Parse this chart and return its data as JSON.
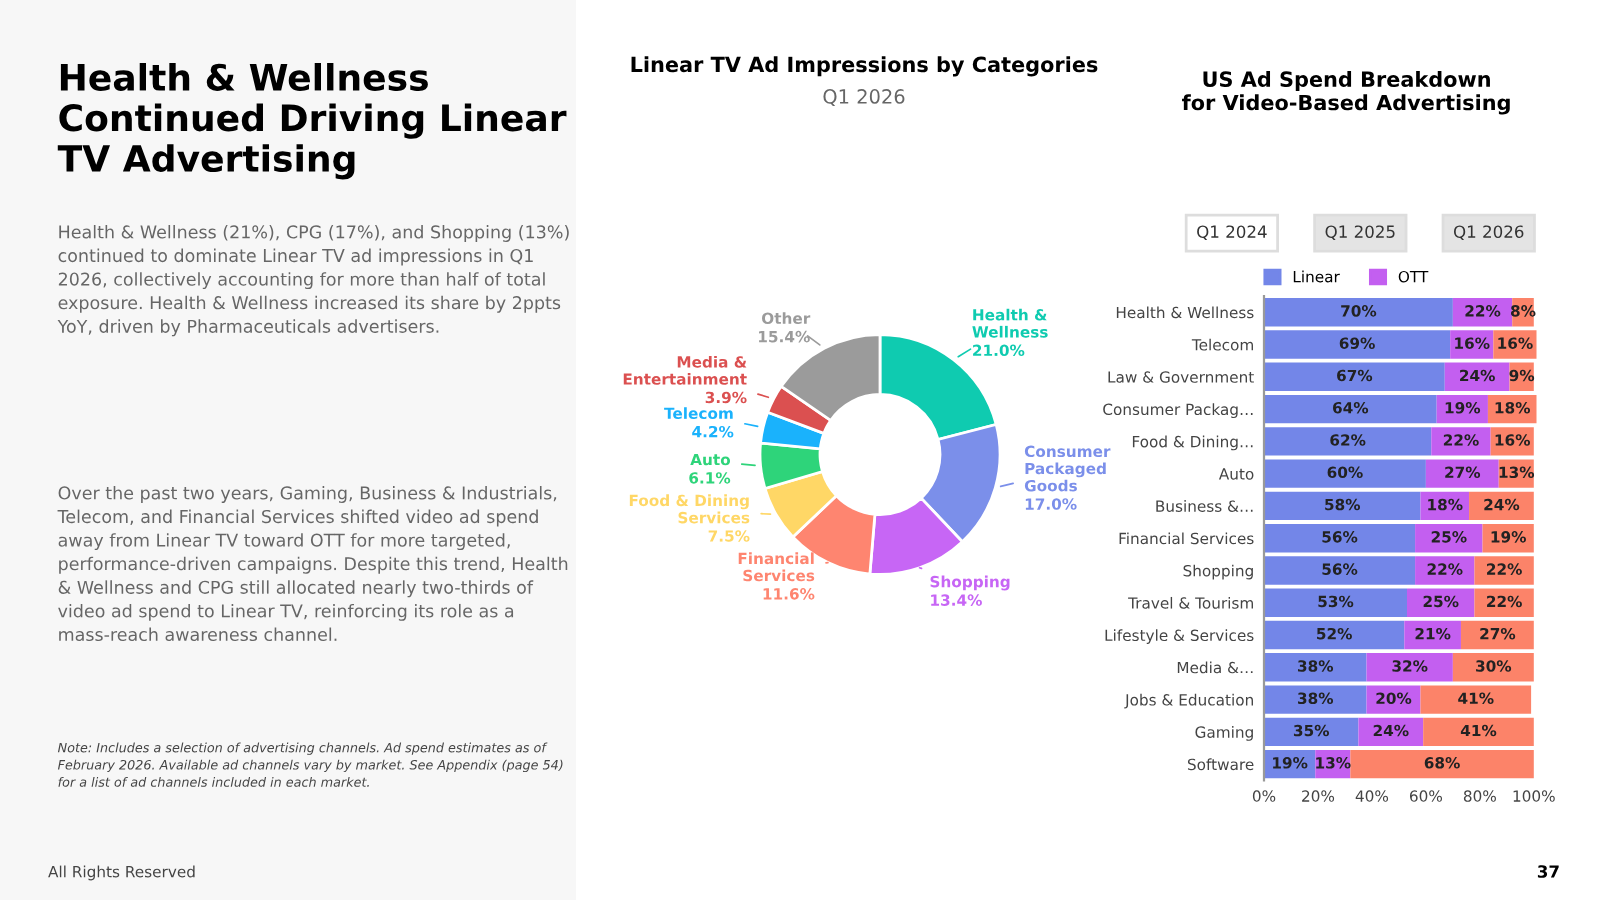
{
  "chart_data": [
    {
      "type": "other",
      "title": "Health & Wellness Continued Driving Linear TV Advertising",
      "annotations": [
        "Health & Wellness (21%), CPG (17%), and Shopping (13%) continued to dominate Linear TV ad impressions in Q1 2026, collectively accounting for more than half of total exposure. Health & Wellness increased its share by 2ppts YoY, driven by Pharmaceuticals advertisers.",
        "Over the past two years, Gaming, Business & Industrials, Telecom, and Financial Services shifted video ad spend away from Linear TV toward OTT for more targeted, performance-driven campaigns. Despite this trend, Health & Wellness and CPG still allocated nearly two-thirds of video ad spend to Linear TV, reinforcing its role as a mass-reach awareness channel.",
        "Note: Includes a selection of advertising channels. Ad spend estimates as of February 2026. Available ad channels vary by market. See Appendix (page 54) for a list of ad channels included in each market.",
        "All Rights Reserved",
        "37"
      ]
    },
    {
      "type": "donut",
      "title": "Linear TV Ad Impressions by Categories",
      "subtitle": "Q1 2026",
      "categories": [
        "Health & Wellness",
        "Consumer Packaged Goods",
        "Shopping",
        "Financial Services",
        "Food & Dining Services",
        "Auto",
        "Telecom",
        "Media & Entertainment",
        "Other"
      ],
      "values": [
        21.0,
        17.0,
        13.4,
        11.6,
        7.5,
        6.1,
        4.2,
        3.9,
        15.4
      ],
      "value_labels": [
        "21.0%",
        "17.0%",
        "13.4%",
        "11.6%",
        "7.5%",
        "6.1%",
        "4.2%",
        "3.9%",
        "15.4%"
      ],
      "colors": [
        "#0fcbb0",
        "#7b8fea",
        "#c766f5",
        "#fe8570",
        "#ffd766",
        "#2ed47a",
        "#1ab2fc",
        "#db5050",
        "#9b9b9b"
      ]
    },
    {
      "type": "bar",
      "orientation": "horizontal",
      "stacked": true,
      "legend": "top",
      "title": "US Ad Spend Breakdown for Video-Based Advertising",
      "annotations": [
        "Q1 2024",
        "Q1 2025",
        "Q1 2026"
      ],
      "categories": [
        "Health & Wellness",
        "Telecom",
        "Law & Government",
        "Consumer Packag…",
        "Food & Dining…",
        "Auto",
        "Business &…",
        "Financial Services",
        "Shopping",
        "Travel & Tourism",
        "Lifestyle & Services",
        "Media &…",
        "Jobs & Education",
        "Gaming",
        "Software"
      ],
      "series": [
        {
          "name": "Linear",
          "color": "#7386e8",
          "values": [
            70,
            69,
            67,
            64,
            62,
            60,
            58,
            56,
            56,
            53,
            52,
            38,
            38,
            35,
            19
          ],
          "value_labels": [
            "70%",
            "69%",
            "67%",
            "64%",
            "62%",
            "60%",
            "58%",
            "56%",
            "56%",
            "53%",
            "52%",
            "38%",
            "38%",
            "35%",
            "19%"
          ]
        },
        {
          "name": "OTT",
          "color": "#c35ff0",
          "values": [
            22,
            16,
            24,
            19,
            22,
            27,
            18,
            25,
            22,
            25,
            21,
            32,
            20,
            24,
            13
          ],
          "value_labels": [
            "22%",
            "16%",
            "24%",
            "19%",
            "22%",
            "27%",
            "18%",
            "25%",
            "22%",
            "25%",
            "21%",
            "32%",
            "20%",
            "24%",
            "13%"
          ]
        },
        {
          "color": "#fc8369",
          "values": [
            8,
            16,
            9,
            18,
            16,
            13,
            24,
            19,
            22,
            22,
            27,
            30,
            41,
            41,
            68
          ],
          "value_labels": [
            "8%",
            "16%",
            "9%",
            "18%",
            "16%",
            "13%",
            "24%",
            "19%",
            "22%",
            "22%",
            "27%",
            "30%",
            "41%",
            "41%",
            "68%"
          ]
        }
      ],
      "xlim": [
        0,
        102
      ],
      "xticks": [
        {
          "value": 0,
          "label": "0%"
        },
        {
          "value": 20,
          "label": "20%"
        },
        {
          "value": 40,
          "label": "40%"
        },
        {
          "value": 60,
          "label": "60%"
        },
        {
          "value": 80,
          "label": "80%"
        },
        {
          "value": 100,
          "label": "100%"
        }
      ]
    }
  ]
}
